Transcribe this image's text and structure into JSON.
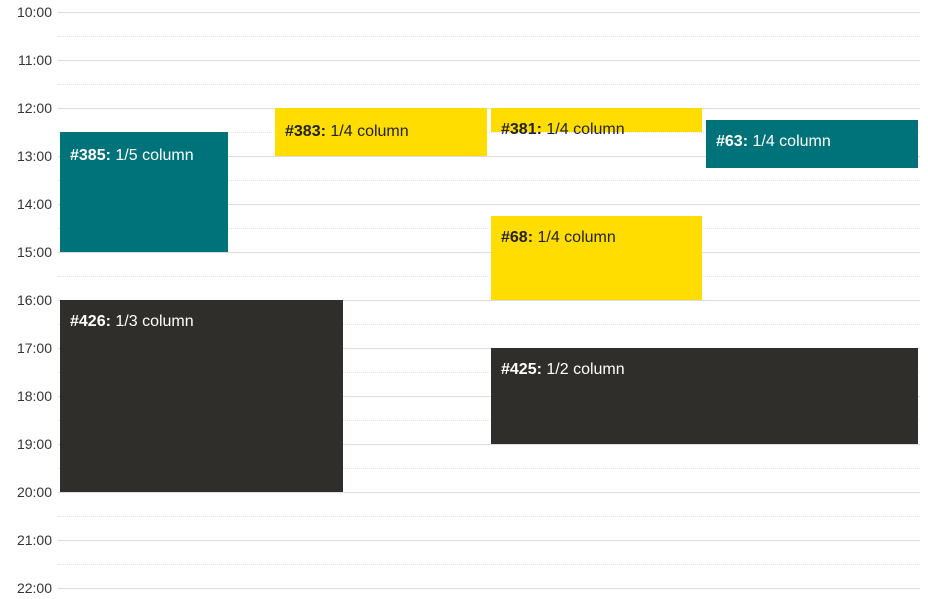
{
  "hours": [
    "10:00",
    "11:00",
    "12:00",
    "13:00",
    "14:00",
    "15:00",
    "16:00",
    "17:00",
    "18:00",
    "19:00",
    "20:00",
    "21:00",
    "22:00"
  ],
  "events": [
    {
      "id": "#385:",
      "label": "1/5 column",
      "color": "teal"
    },
    {
      "id": "#383:",
      "label": "1/4 column",
      "color": "yellow"
    },
    {
      "id": "#381:",
      "label": "1/4 column",
      "color": "yellow"
    },
    {
      "id": "#63:",
      "label": "1/4 column",
      "color": "teal"
    },
    {
      "id": "#68:",
      "label": "1/4 column",
      "color": "yellow"
    },
    {
      "id": "#426:",
      "label": "1/3 column",
      "color": "dark"
    },
    {
      "id": "#425:",
      "label": "1/2 column",
      "color": "dark"
    }
  ],
  "colors": {
    "teal": "#00727a",
    "yellow": "#ffdd00",
    "dark": "#2f2e2a"
  }
}
